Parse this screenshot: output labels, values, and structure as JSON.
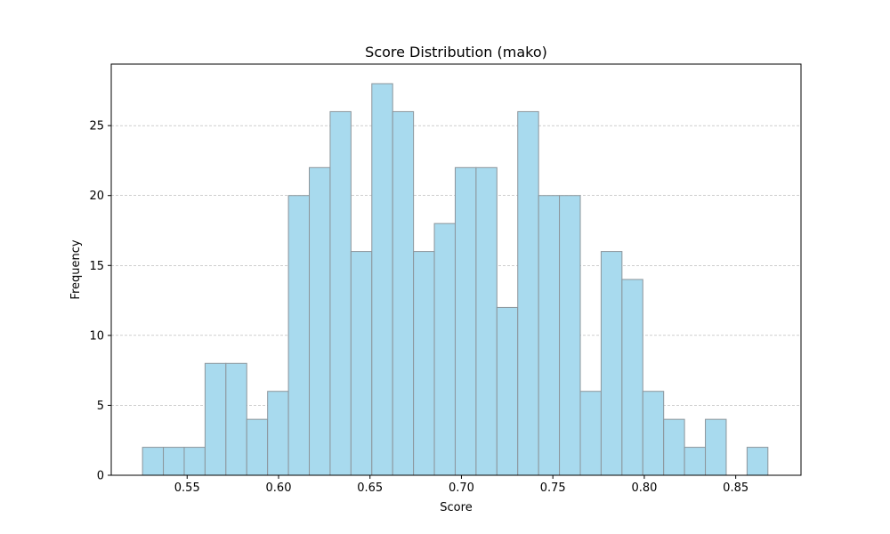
{
  "chart_data": {
    "type": "bar",
    "title": "Score Distribution (mako)",
    "xlabel": "Score",
    "ylabel": "Frequency",
    "xlim": [
      0.5085,
      0.8857
    ],
    "ylim": [
      0,
      29.4
    ],
    "xticks": [
      0.55,
      0.6,
      0.65,
      0.7,
      0.75,
      0.8,
      0.85
    ],
    "xtick_labels": [
      "0.55",
      "0.60",
      "0.65",
      "0.70",
      "0.75",
      "0.80",
      "0.85"
    ],
    "yticks": [
      0,
      5,
      10,
      15,
      20,
      25
    ],
    "ytick_labels": [
      "0",
      "5",
      "10",
      "15",
      "20",
      "25"
    ],
    "grid": {
      "y": true,
      "x": false,
      "style": "dashed"
    },
    "bin_edges": [
      0.5256,
      0.537,
      0.5484,
      0.5598,
      0.5712,
      0.5826,
      0.594,
      0.6054,
      0.6168,
      0.6282,
      0.6396,
      0.651,
      0.6624,
      0.6738,
      0.6852,
      0.6966,
      0.708,
      0.7194,
      0.7308,
      0.7422,
      0.7536,
      0.765,
      0.7764,
      0.7878,
      0.7992,
      0.8106,
      0.822,
      0.8334,
      0.8448,
      0.8562,
      0.8676
    ],
    "counts": [
      2,
      2,
      2,
      8,
      8,
      4,
      6,
      20,
      22,
      26,
      16,
      28,
      26,
      16,
      18,
      22,
      22,
      12,
      26,
      20,
      20,
      6,
      16,
      14,
      6,
      4,
      2,
      4,
      0,
      2
    ],
    "colors": {
      "bar_fill": "#a8daee",
      "bar_edge": "#8c959b",
      "grid": "#b0b0b0",
      "axis": "#000000"
    }
  }
}
